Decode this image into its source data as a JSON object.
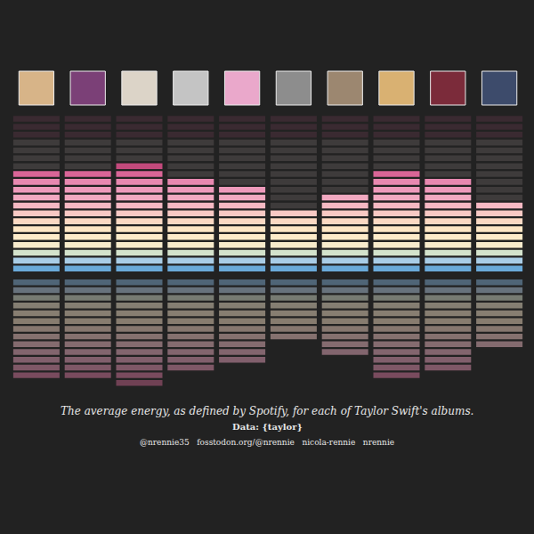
{
  "chart_data": {
    "type": "bar",
    "title": "The average energy, as defined by Spotify, for each of Taylor Swift's albums.",
    "subtitle": "Data: {taylor}",
    "annotations": [
      "@nrennie35",
      "fosstodon.org/@nrennie",
      "nicola-rennie",
      "nrennie"
    ],
    "categories": [
      null,
      null,
      null,
      null,
      null,
      null,
      null,
      null,
      null,
      null
    ],
    "values": [
      0.65,
      0.65,
      0.7,
      0.6,
      0.55,
      0.4,
      0.5,
      0.65,
      0.6,
      0.45
    ],
    "ylim": [
      0,
      1
    ],
    "tick_labels": false,
    "grid": false
  }
}
